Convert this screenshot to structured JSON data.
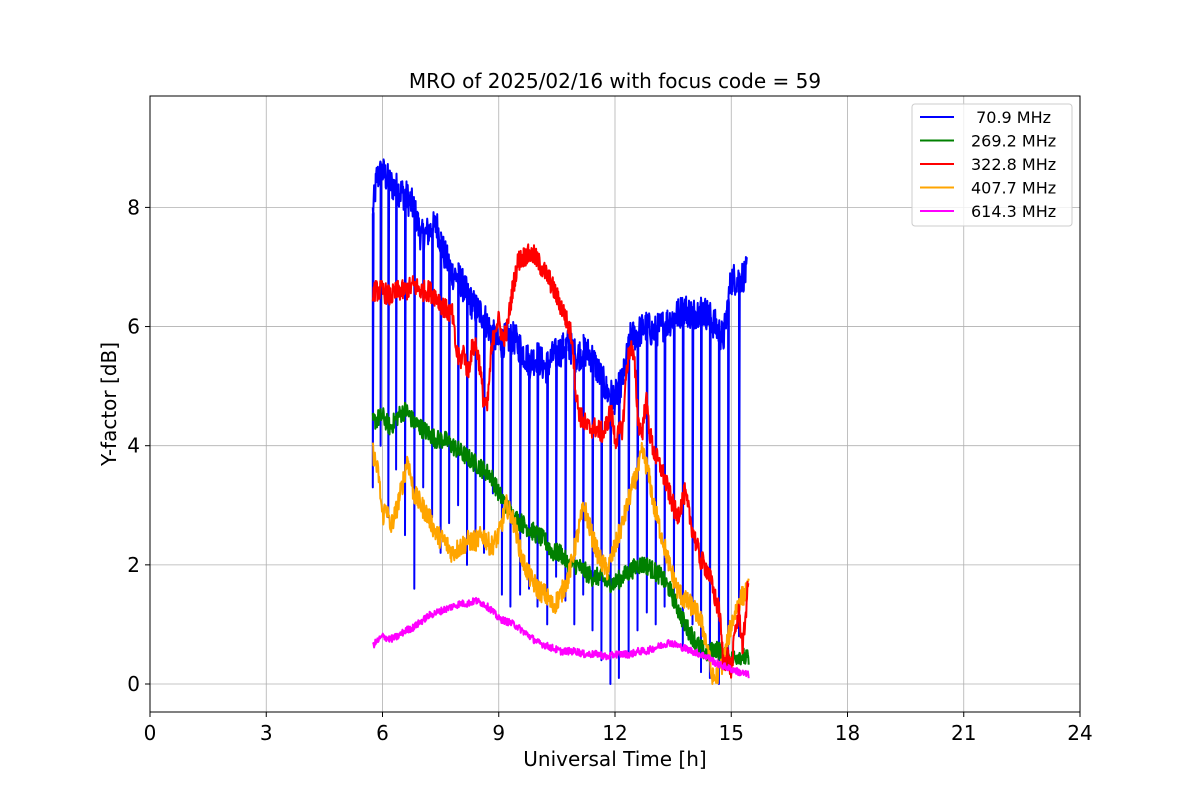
{
  "chart_data": {
    "type": "line",
    "title": "MRO of 2025/02/16 with focus code = 59",
    "xlabel": "Universal Time [h]",
    "ylabel": "Y-factor [dB]",
    "xlim": [
      0,
      24
    ],
    "ylim": [
      -0.47,
      9.87
    ],
    "xticks": [
      0,
      3,
      6,
      9,
      12,
      15,
      18,
      21,
      24
    ],
    "yticks": [
      0,
      2,
      4,
      6,
      8
    ],
    "grid": true,
    "legend_position": "top-right",
    "series": [
      {
        "name": " 70.9 MHz",
        "color": "#0000ff",
        "dropouts": [
          5.75,
          5.95,
          6.15,
          6.35,
          6.58,
          6.82,
          7.05,
          7.28,
          7.5,
          7.72,
          7.95,
          8.18,
          8.4,
          8.62,
          8.85,
          9.08,
          9.3,
          9.55,
          9.78,
          10.0,
          10.25,
          10.48,
          10.72,
          10.95,
          11.18,
          11.42,
          11.65,
          11.88,
          12.1,
          12.35,
          12.58,
          12.82,
          13.05,
          13.28,
          13.52,
          13.75,
          14.0,
          14.22,
          14.45,
          14.68,
          14.92,
          15.2
        ],
        "dropout_min": [
          3.3,
          4.0,
          2.8,
          3.6,
          2.5,
          1.6,
          3.3,
          2.8,
          2.2,
          2.7,
          3.0,
          2.0,
          2.5,
          2.2,
          3.2,
          1.5,
          1.3,
          1.5,
          1.6,
          1.3,
          1.0,
          1.8,
          1.4,
          1.0,
          1.5,
          0.9,
          0.4,
          0.0,
          0.1,
          0.5,
          0.9,
          1.2,
          1.0,
          1.3,
          1.5,
          0.6,
          1.0,
          0.2,
          0.1,
          0.0,
          0.3,
          0.8
        ],
        "x": [
          5.75,
          5.85,
          6.0,
          6.2,
          6.4,
          6.6,
          6.8,
          7.0,
          7.2,
          7.4,
          7.6,
          7.8,
          8.0,
          8.2,
          8.4,
          8.6,
          8.8,
          9.0,
          9.2,
          9.4,
          9.6,
          9.8,
          10.0,
          10.2,
          10.4,
          10.6,
          10.8,
          11.0,
          11.2,
          11.4,
          11.6,
          11.8,
          12.0,
          12.2,
          12.4,
          12.6,
          12.8,
          13.0,
          13.2,
          13.4,
          13.6,
          13.8,
          14.0,
          14.2,
          14.4,
          14.6,
          14.8,
          14.9,
          15.0,
          15.2,
          15.4
        ],
        "y": [
          7.9,
          8.5,
          8.6,
          8.4,
          8.3,
          8.2,
          8.0,
          7.5,
          7.6,
          7.7,
          7.2,
          6.9,
          6.8,
          6.5,
          6.3,
          6.2,
          5.9,
          5.7,
          5.8,
          5.8,
          5.6,
          5.4,
          5.5,
          5.3,
          5.5,
          5.6,
          5.7,
          5.5,
          5.6,
          5.5,
          5.2,
          4.9,
          4.8,
          5.1,
          5.8,
          5.9,
          6.0,
          5.9,
          6.0,
          6.1,
          6.2,
          6.3,
          6.2,
          6.3,
          6.2,
          6.0,
          5.8,
          6.3,
          6.8,
          6.8,
          6.9
        ]
      },
      {
        "name": "269.2 MHz",
        "color": "#008000",
        "x": [
          5.75,
          6.0,
          6.2,
          6.4,
          6.6,
          6.8,
          7.0,
          7.2,
          7.4,
          7.6,
          7.8,
          8.0,
          8.2,
          8.4,
          8.6,
          8.8,
          9.0,
          9.2,
          9.4,
          9.6,
          9.8,
          10.0,
          10.2,
          10.4,
          10.6,
          10.8,
          11.0,
          11.2,
          11.4,
          11.6,
          11.8,
          12.0,
          12.2,
          12.4,
          12.6,
          12.8,
          13.0,
          13.2,
          13.4,
          13.6,
          13.8,
          14.0,
          14.2,
          14.4,
          14.6,
          14.8,
          15.0,
          15.2,
          15.45
        ],
        "y": [
          4.4,
          4.5,
          4.3,
          4.5,
          4.6,
          4.4,
          4.3,
          4.2,
          4.1,
          4.1,
          4.0,
          3.9,
          3.8,
          3.7,
          3.6,
          3.5,
          3.2,
          3.0,
          2.8,
          2.7,
          2.6,
          2.5,
          2.4,
          2.2,
          2.2,
          2.0,
          2.0,
          1.9,
          1.8,
          1.8,
          1.7,
          1.7,
          1.8,
          1.9,
          2.0,
          2.0,
          1.9,
          1.8,
          1.6,
          1.3,
          1.0,
          0.8,
          0.6,
          0.5,
          0.6,
          0.5,
          0.4,
          0.5,
          0.4
        ]
      },
      {
        "name": "322.8 MHz",
        "color": "#ff0000",
        "x": [
          5.75,
          6.0,
          6.2,
          6.4,
          6.6,
          6.8,
          7.0,
          7.2,
          7.4,
          7.6,
          7.8,
          7.9,
          8.0,
          8.1,
          8.2,
          8.3,
          8.4,
          8.5,
          8.6,
          8.7,
          8.8,
          8.9,
          9.0,
          9.1,
          9.2,
          9.35,
          9.5,
          9.7,
          9.9,
          10.1,
          10.3,
          10.5,
          10.7,
          10.9,
          11.0,
          11.1,
          11.3,
          11.5,
          11.7,
          11.8,
          11.9,
          12.0,
          12.1,
          12.2,
          12.3,
          12.4,
          12.5,
          12.6,
          12.7,
          12.8,
          12.9,
          13.0,
          13.2,
          13.4,
          13.6,
          13.8,
          14.0,
          14.2,
          14.4,
          14.6,
          14.7,
          14.8,
          14.9,
          15.0,
          15.1,
          15.2,
          15.3,
          15.45
        ],
        "y": [
          6.6,
          6.6,
          6.5,
          6.6,
          6.6,
          6.7,
          6.6,
          6.6,
          6.5,
          6.3,
          6.2,
          5.6,
          5.4,
          5.6,
          5.2,
          5.6,
          5.7,
          5.4,
          4.8,
          4.6,
          5.5,
          6.0,
          6.1,
          5.8,
          5.9,
          6.6,
          7.1,
          7.2,
          7.2,
          7.0,
          6.8,
          6.5,
          6.2,
          5.8,
          4.8,
          4.5,
          4.3,
          4.3,
          4.2,
          4.4,
          4.6,
          4.1,
          4.2,
          4.3,
          5.3,
          5.7,
          5.4,
          4.4,
          4.2,
          4.8,
          4.2,
          3.9,
          3.6,
          3.2,
          2.8,
          3.2,
          2.6,
          2.1,
          1.9,
          1.4,
          1.2,
          0.3,
          0.5,
          0.2,
          0.9,
          1.2,
          0.6,
          1.8
        ]
      },
      {
        "name": "407.7 MHz",
        "color": "#ffa500",
        "x": [
          5.75,
          5.9,
          6.0,
          6.1,
          6.2,
          6.35,
          6.5,
          6.65,
          6.8,
          7.0,
          7.2,
          7.4,
          7.6,
          7.8,
          8.0,
          8.2,
          8.4,
          8.6,
          8.8,
          9.0,
          9.2,
          9.4,
          9.6,
          9.8,
          10.0,
          10.2,
          10.4,
          10.6,
          10.8,
          11.0,
          11.2,
          11.4,
          11.6,
          11.8,
          12.0,
          12.2,
          12.4,
          12.6,
          12.7,
          12.8,
          12.9,
          13.0,
          13.2,
          13.4,
          13.6,
          13.8,
          14.0,
          14.2,
          14.4,
          14.5,
          14.6,
          14.8,
          15.0,
          15.2,
          15.45
        ],
        "y": [
          3.9,
          3.5,
          2.8,
          3.0,
          2.6,
          2.9,
          3.3,
          3.8,
          3.2,
          3.0,
          2.8,
          2.5,
          2.4,
          2.2,
          2.3,
          2.4,
          2.4,
          2.5,
          2.3,
          2.5,
          3.0,
          2.7,
          2.1,
          1.8,
          1.6,
          1.5,
          1.3,
          1.5,
          1.8,
          2.4,
          3.0,
          2.5,
          2.1,
          1.9,
          2.3,
          2.7,
          3.2,
          3.6,
          3.9,
          3.7,
          3.4,
          3.0,
          2.5,
          2.0,
          1.6,
          1.4,
          1.3,
          1.1,
          0.6,
          0.1,
          0.1,
          0.4,
          1.0,
          1.4,
          1.6
        ]
      },
      {
        "name": "614.3 MHz",
        "color": "#ff00ff",
        "x": [
          5.75,
          6.0,
          6.2,
          6.4,
          6.6,
          6.8,
          7.0,
          7.2,
          7.4,
          7.6,
          7.8,
          8.0,
          8.2,
          8.4,
          8.6,
          8.8,
          9.0,
          9.2,
          9.4,
          9.6,
          9.8,
          10.0,
          10.2,
          10.4,
          10.6,
          10.8,
          11.0,
          11.2,
          11.4,
          11.6,
          11.8,
          12.0,
          12.2,
          12.4,
          12.6,
          12.8,
          13.0,
          13.2,
          13.4,
          13.6,
          13.8,
          14.0,
          14.2,
          14.4,
          14.6,
          14.8,
          15.0,
          15.2,
          15.45
        ],
        "y": [
          0.65,
          0.8,
          0.75,
          0.8,
          0.9,
          0.95,
          1.05,
          1.15,
          1.2,
          1.25,
          1.3,
          1.35,
          1.35,
          1.4,
          1.35,
          1.25,
          1.1,
          1.05,
          1.0,
          0.9,
          0.8,
          0.7,
          0.65,
          0.6,
          0.55,
          0.55,
          0.55,
          0.5,
          0.5,
          0.5,
          0.45,
          0.5,
          0.5,
          0.5,
          0.55,
          0.55,
          0.6,
          0.65,
          0.7,
          0.65,
          0.6,
          0.55,
          0.5,
          0.45,
          0.35,
          0.3,
          0.25,
          0.2,
          0.15
        ]
      }
    ]
  }
}
